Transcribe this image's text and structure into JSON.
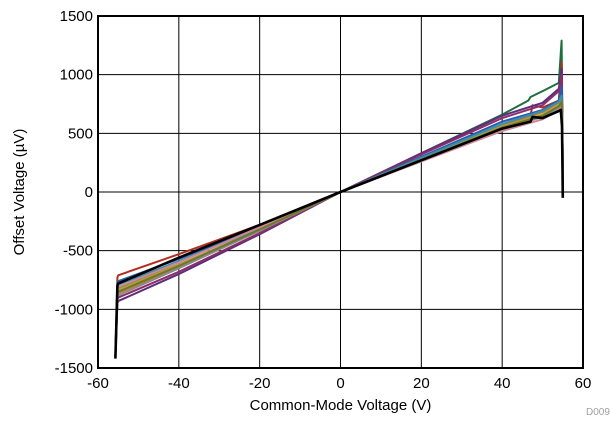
{
  "chart_data": {
    "type": "line",
    "title": "",
    "xlabel": "Common-Mode Voltage (V)",
    "ylabel": "Offset Voltage (µV)",
    "xlim": [
      -60,
      60
    ],
    "ylim": [
      -1500,
      1500
    ],
    "xticks": [
      -60,
      -40,
      -20,
      0,
      20,
      40,
      60
    ],
    "yticks": [
      -1500,
      -1000,
      -500,
      0,
      500,
      1000,
      1500
    ],
    "xtick_labels": [
      "-60",
      "-40",
      "-20",
      "0",
      "20",
      "40",
      "60"
    ],
    "ytick_labels": [
      "-1500",
      "-1000",
      "-500",
      "0",
      "500",
      "1000",
      "1500"
    ],
    "grid": true,
    "legend": "none",
    "figure_id": "D009",
    "series": [
      {
        "color": "#1f6e3f",
        "x": [
          -55.7,
          -55.2,
          -55,
          -40,
          -20,
          0,
          20,
          40,
          46.5,
          47,
          50,
          54,
          54.7,
          54.9,
          55
        ],
        "y": [
          -1400,
          -840,
          -820,
          -620,
          -330,
          0,
          330,
          660,
          780,
          810,
          860,
          930,
          1290,
          600,
          -30
        ]
      },
      {
        "color": "#b03020",
        "x": [
          -55.7,
          -55.2,
          -55,
          -40,
          -20,
          0,
          20,
          40,
          47,
          47.5,
          50,
          54,
          54.7,
          54.9,
          55
        ],
        "y": [
          -1400,
          -730,
          -710,
          -530,
          -280,
          0,
          280,
          560,
          650,
          740,
          720,
          780,
          1100,
          580,
          -30
        ]
      },
      {
        "color": "#5a2e78",
        "x": [
          -55.7,
          -55.2,
          -55,
          -40,
          -20,
          0,
          20,
          40,
          50,
          54,
          54.7,
          54.9,
          55
        ],
        "y": [
          -1400,
          -950,
          -930,
          -700,
          -360,
          0,
          330,
          650,
          760,
          880,
          1050,
          600,
          -30
        ]
      },
      {
        "color": "#8b2d6a",
        "x": [
          -55.7,
          -55.2,
          -55,
          -40,
          -20,
          0,
          20,
          40,
          50,
          54,
          54.7,
          54.9,
          55
        ],
        "y": [
          -1400,
          -920,
          -900,
          -680,
          -350,
          0,
          320,
          630,
          740,
          860,
          1000,
          600,
          -30
        ]
      },
      {
        "color": "#2a5db0",
        "x": [
          -55.7,
          -55.2,
          -55,
          -40,
          -20,
          0,
          20,
          40,
          50,
          54,
          54.7,
          54.9,
          55
        ],
        "y": [
          -1400,
          -780,
          -760,
          -570,
          -300,
          0,
          300,
          600,
          700,
          780,
          900,
          600,
          -30
        ]
      },
      {
        "color": "#c0782a",
        "x": [
          -55.7,
          -55.2,
          -55,
          -40,
          -20,
          0,
          20,
          40,
          50,
          54,
          54.7,
          54.9,
          55
        ],
        "y": [
          -1400,
          -880,
          -860,
          -640,
          -330,
          0,
          290,
          570,
          680,
          760,
          800,
          600,
          -30
        ]
      },
      {
        "color": "#b89a3a",
        "x": [
          -55.7,
          -55.2,
          -55,
          -40,
          -20,
          0,
          20,
          40,
          50,
          54,
          54.7,
          54.9,
          55
        ],
        "y": [
          -1400,
          -850,
          -830,
          -620,
          -320,
          0,
          280,
          560,
          660,
          740,
          780,
          600,
          -30
        ]
      },
      {
        "color": "#3c8fa8",
        "x": [
          -55.7,
          -55.2,
          -55,
          -40,
          -20,
          0,
          20,
          40,
          50,
          54,
          54.7,
          54.9,
          55
        ],
        "y": [
          -1400,
          -810,
          -790,
          -590,
          -310,
          0,
          290,
          580,
          690,
          770,
          820,
          600,
          -30
        ]
      },
      {
        "color": "#d08898",
        "x": [
          -55.7,
          -55.2,
          -55,
          -40,
          -20,
          0,
          20,
          40,
          50,
          54,
          54.7,
          54.9,
          55
        ],
        "y": [
          -1400,
          -830,
          -810,
          -600,
          -300,
          0,
          260,
          520,
          620,
          700,
          740,
          600,
          -30
        ]
      },
      {
        "color": "#8a8a8a",
        "x": [
          -55.7,
          -55.2,
          -55,
          -40,
          -20,
          0,
          20,
          40,
          50,
          54,
          54.7,
          54.9,
          55
        ],
        "y": [
          -1400,
          -900,
          -880,
          -650,
          -330,
          0,
          270,
          540,
          640,
          720,
          760,
          600,
          -30
        ]
      },
      {
        "color": "#6b7a2a",
        "x": [
          -55.7,
          -55.2,
          -55,
          -40,
          -20,
          0,
          20,
          40,
          50,
          54,
          54.7,
          54.9,
          55
        ],
        "y": [
          -1400,
          -870,
          -850,
          -630,
          -320,
          0,
          275,
          550,
          650,
          730,
          770,
          600,
          -30
        ]
      },
      {
        "color": "#000000",
        "x": [
          -55.7,
          -55.2,
          -55,
          -40,
          -20,
          0,
          20,
          40,
          47,
          47.5,
          50,
          54,
          54.5,
          54.8,
          55
        ],
        "y": [
          -1420,
          -800,
          -780,
          -560,
          -280,
          0,
          270,
          540,
          600,
          640,
          630,
          690,
          700,
          560,
          -50
        ]
      }
    ]
  }
}
